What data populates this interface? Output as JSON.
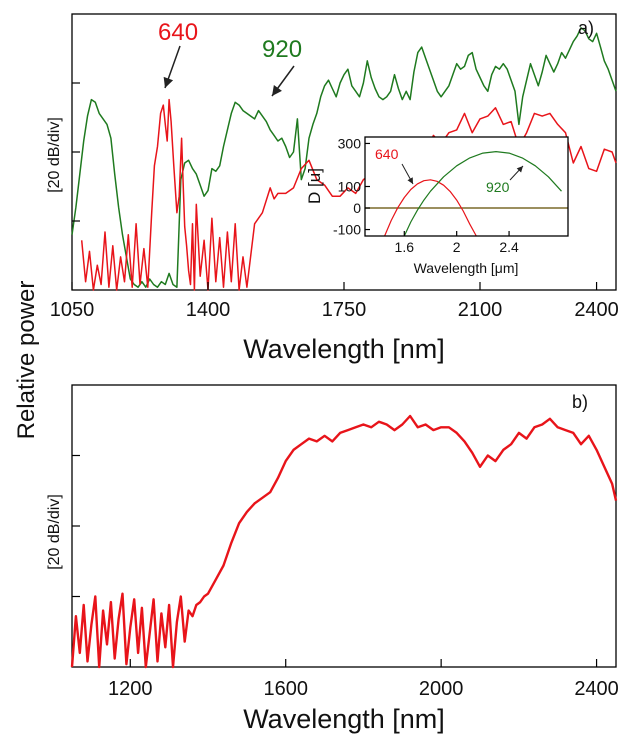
{
  "shared_ylabel": "Relative power",
  "chart_data": [
    {
      "id": "a",
      "type": "line",
      "panel_label": "a)",
      "xlabel": "Wavelength [nm]",
      "ylabel": "[20 dB/div]",
      "xlim": [
        1050,
        2450
      ],
      "ylim": [
        0,
        100
      ],
      "yscale": "20 dB per division (relative, no tick labels)",
      "xticks": [
        1050,
        1400,
        1750,
        2100,
        2400
      ],
      "xtick_labels": [
        "1050",
        "1400",
        "1750",
        "2100",
        "2400"
      ],
      "grid": false,
      "annotations": [
        {
          "text": "640",
          "color": "#e8141a",
          "arrow_to": {
            "x": 1290,
            "y": 68
          }
        },
        {
          "text": "920",
          "color": "#1f7a1f",
          "arrow_to": {
            "x": 1540,
            "y": 63
          }
        }
      ],
      "series": [
        {
          "name": "640",
          "color": "#e8141a",
          "x": [
            1075,
            1085,
            1095,
            1105,
            1115,
            1125,
            1135,
            1145,
            1155,
            1165,
            1175,
            1185,
            1195,
            1205,
            1215,
            1225,
            1235,
            1245,
            1255,
            1262,
            1270,
            1278,
            1285,
            1290,
            1295,
            1300,
            1305,
            1312,
            1320,
            1326,
            1332,
            1336,
            1340,
            1345,
            1350,
            1355,
            1360,
            1365,
            1370,
            1380,
            1390,
            1400,
            1410,
            1420,
            1430,
            1440,
            1450,
            1460,
            1470,
            1480,
            1490,
            1500,
            1520,
            1540,
            1560,
            1570,
            1580,
            1600,
            1620,
            1640,
            1660,
            1680,
            1700,
            1720,
            1740,
            1760,
            1780,
            1800,
            1820,
            1840,
            1860,
            1880,
            1900,
            1920,
            1940,
            1960,
            1980,
            2000,
            2020,
            2040,
            2060,
            2080,
            2100,
            2120,
            2140,
            2160,
            2180,
            2200,
            2220,
            2240,
            2260,
            2280,
            2300,
            2320,
            2340,
            2360,
            2380,
            2400,
            2420,
            2440,
            2450
          ],
          "y": [
            18,
            3,
            14,
            0,
            9,
            2,
            21,
            1,
            16,
            0,
            12,
            3,
            20,
            1,
            24,
            2,
            15,
            1,
            28,
            45,
            52,
            64,
            67,
            60,
            54,
            69,
            61,
            45,
            28,
            34,
            55,
            39,
            23,
            16,
            7,
            2,
            24,
            0,
            31,
            5,
            18,
            0,
            26,
            3,
            19,
            1,
            21,
            3,
            24,
            0,
            12,
            1,
            24,
            28,
            37,
            33,
            35,
            35,
            37,
            44,
            47,
            40,
            38,
            34,
            34,
            37,
            35,
            40,
            42,
            49,
            52,
            46,
            46,
            53,
            51,
            49,
            56,
            53,
            57,
            58,
            64,
            57,
            62,
            63,
            66,
            60,
            61,
            52,
            57,
            64,
            63,
            64,
            60,
            57,
            46,
            52,
            44,
            43,
            51,
            50,
            46
          ],
          "shown_as": "line"
        },
        {
          "name": "920",
          "color": "#1f7a1f",
          "x": [
            1050,
            1060,
            1070,
            1080,
            1090,
            1100,
            1110,
            1120,
            1130,
            1140,
            1150,
            1160,
            1170,
            1180,
            1190,
            1200,
            1210,
            1220,
            1230,
            1240,
            1250,
            1260,
            1270,
            1280,
            1290,
            1300,
            1310,
            1320,
            1330,
            1340,
            1350,
            1360,
            1370,
            1380,
            1390,
            1400,
            1410,
            1420,
            1430,
            1440,
            1450,
            1460,
            1470,
            1480,
            1490,
            1500,
            1510,
            1520,
            1530,
            1540,
            1550,
            1560,
            1570,
            1580,
            1590,
            1600,
            1610,
            1620,
            1630,
            1640,
            1650,
            1660,
            1670,
            1680,
            1690,
            1700,
            1710,
            1720,
            1730,
            1740,
            1750,
            1760,
            1770,
            1780,
            1790,
            1800,
            1810,
            1820,
            1830,
            1840,
            1850,
            1860,
            1870,
            1880,
            1890,
            1900,
            1910,
            1920,
            1930,
            1940,
            1950,
            1960,
            1970,
            1980,
            1990,
            2000,
            2010,
            2020,
            2030,
            2040,
            2050,
            2060,
            2070,
            2080,
            2090,
            2100,
            2110,
            2120,
            2130,
            2140,
            2150,
            2160,
            2170,
            2180,
            2190,
            2200,
            2210,
            2220,
            2230,
            2240,
            2250,
            2260,
            2270,
            2280,
            2290,
            2300,
            2310,
            2320,
            2330,
            2340,
            2350,
            2360,
            2370,
            2380,
            2390,
            2400,
            2410,
            2420,
            2430,
            2440,
            2450
          ],
          "y": [
            20,
            30,
            42,
            54,
            63,
            69,
            68,
            64,
            62,
            60,
            55,
            42,
            30,
            20,
            12,
            4,
            2,
            1,
            3,
            1,
            4,
            2,
            1,
            3,
            2,
            6,
            2,
            1,
            40,
            46,
            47,
            44,
            42,
            38,
            34,
            36,
            44,
            43,
            45,
            52,
            58,
            64,
            68,
            67,
            65,
            64,
            63,
            62,
            65,
            63,
            61,
            58,
            56,
            54,
            55,
            52,
            48,
            50,
            62,
            40,
            44,
            55,
            60,
            64,
            70,
            74,
            76,
            73,
            70,
            75,
            78,
            80,
            74,
            72,
            70,
            75,
            83,
            77,
            73,
            70,
            69,
            70,
            72,
            78,
            73,
            69,
            72,
            69,
            79,
            86,
            88,
            84,
            80,
            76,
            72,
            70,
            72,
            74,
            78,
            82,
            80,
            81,
            85,
            86,
            80,
            77,
            74,
            72,
            78,
            81,
            80,
            82,
            80,
            76,
            72,
            60,
            70,
            76,
            82,
            78,
            74,
            79,
            85,
            82,
            79,
            82,
            86,
            84,
            87,
            90,
            92,
            95,
            94,
            91,
            90,
            93,
            88,
            83,
            80,
            76,
            72
          ],
          "shown_as": "line"
        }
      ],
      "inset": {
        "type": "line",
        "xlabel": "Wavelength [μm]",
        "ylabel": "D [u]",
        "xlim": [
          1.3,
          2.85
        ],
        "ylim": [
          -130,
          330
        ],
        "xticks": [
          1.6,
          2,
          2.4
        ],
        "xtick_labels": [
          "1.6",
          "2",
          "2.4"
        ],
        "yticks": [
          -100,
          0,
          100,
          300
        ],
        "ytick_labels": [
          "-100",
          "0",
          "100",
          "300"
        ],
        "annotations": [
          {
            "text": "640",
            "color": "#e8141a"
          },
          {
            "text": "920",
            "color": "#1f7a1f"
          }
        ],
        "series": [
          {
            "name": "640",
            "color": "#e8141a",
            "x": [
              1.45,
              1.5,
              1.55,
              1.6,
              1.65,
              1.7,
              1.75,
              1.8,
              1.85,
              1.9,
              1.95,
              2.0,
              2.05,
              2.1,
              2.15
            ],
            "y": [
              -130,
              -58,
              1,
              49,
              86,
              112,
              127,
              131,
              124,
              106,
              77,
              37,
              -14,
              -75,
              -130
            ]
          },
          {
            "name": "920",
            "color": "#1f7a1f",
            "x": [
              1.6,
              1.65,
              1.7,
              1.75,
              1.8,
              1.9,
              2.0,
              2.1,
              2.2,
              2.3,
              2.4,
              2.5,
              2.6,
              2.7,
              2.8
            ],
            "y": [
              -130,
              -65,
              -10,
              37,
              78,
              145,
              196,
              233,
              255,
              262,
              255,
              233,
              196,
              145,
              78
            ]
          },
          {
            "name": "zero",
            "color": "#7a6a2a",
            "x": [
              1.3,
              2.85
            ],
            "y": [
              0,
              0
            ]
          }
        ]
      }
    },
    {
      "id": "b",
      "type": "line",
      "panel_label": "b)",
      "xlabel": "Wavelength [nm]",
      "ylabel": "[20 dB/div]",
      "xlim": [
        1050,
        2450
      ],
      "ylim": [
        0,
        100
      ],
      "yscale": "20 dB per division (relative, no tick labels)",
      "xticks": [
        1200,
        1600,
        2000,
        2400
      ],
      "xtick_labels": [
        "1200",
        "1600",
        "2000",
        "2400"
      ],
      "grid": false,
      "series": [
        {
          "color": "#e8141a",
          "x": [
            1050,
            1060,
            1070,
            1080,
            1090,
            1100,
            1110,
            1120,
            1130,
            1140,
            1150,
            1160,
            1170,
            1180,
            1190,
            1200,
            1210,
            1220,
            1230,
            1240,
            1250,
            1260,
            1270,
            1280,
            1290,
            1300,
            1310,
            1320,
            1330,
            1340,
            1350,
            1360,
            1370,
            1380,
            1390,
            1400,
            1420,
            1440,
            1460,
            1480,
            1500,
            1520,
            1540,
            1560,
            1580,
            1600,
            1620,
            1640,
            1660,
            1680,
            1700,
            1720,
            1740,
            1760,
            1780,
            1800,
            1820,
            1840,
            1860,
            1880,
            1900,
            1920,
            1940,
            1960,
            1980,
            2000,
            2020,
            2040,
            2060,
            2080,
            2100,
            2120,
            2140,
            2160,
            2180,
            2200,
            2220,
            2240,
            2260,
            2280,
            2300,
            2320,
            2340,
            2360,
            2380,
            2400,
            2420,
            2440,
            2450
          ],
          "y": [
            0,
            18,
            5,
            22,
            2,
            15,
            25,
            0,
            20,
            8,
            23,
            3,
            17,
            26,
            1,
            14,
            24,
            5,
            21,
            0,
            12,
            24,
            2,
            19,
            7,
            22,
            0,
            16,
            25,
            9,
            20,
            18,
            22,
            23,
            25,
            26,
            31,
            36,
            44,
            51,
            55,
            58,
            60,
            62,
            67,
            73,
            77,
            79,
            81,
            80,
            82,
            80,
            83,
            84,
            85,
            86,
            85,
            87,
            86,
            84,
            86,
            89,
            85,
            86,
            84,
            85,
            85,
            83,
            80,
            76,
            71,
            75,
            73,
            77,
            79,
            83,
            81,
            85,
            86,
            88,
            85,
            84,
            83,
            79,
            82,
            77,
            71,
            65,
            59
          ],
          "shown_as": "line"
        }
      ]
    }
  ]
}
